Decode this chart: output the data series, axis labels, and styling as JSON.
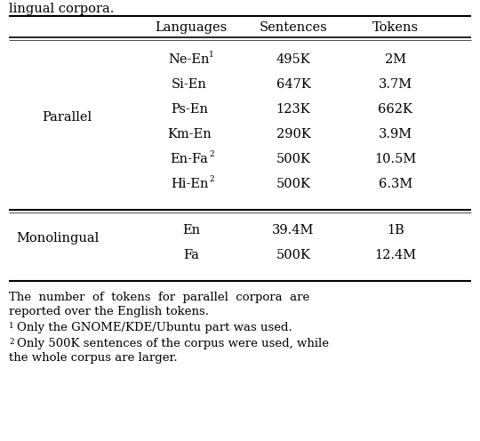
{
  "title_top": "lingual corpora.",
  "col_headers": [
    "Languages",
    "Sentences",
    "Tokens"
  ],
  "row_group1_label": "Parallel",
  "row_group1_data": [
    [
      "Ne-En",
      "1",
      "495K",
      "2M"
    ],
    [
      "Si-En",
      "",
      "647K",
      "3.7M"
    ],
    [
      "Ps-En",
      "",
      "123K",
      "662K"
    ],
    [
      "Km-En",
      "",
      "290K",
      "3.9M"
    ],
    [
      "En-Fa",
      "2",
      "500K",
      "10.5M"
    ],
    [
      "Hi-En",
      "2",
      "500K",
      "6.3M"
    ]
  ],
  "row_group2_label": "Monolingual",
  "row_group2_data": [
    [
      "En",
      "",
      "39.4M",
      "1B"
    ],
    [
      "Fa",
      "",
      "500K",
      "12.4M"
    ]
  ],
  "footnote_main_line1": "The  number  of  tokens  for  parallel  corpora  are",
  "footnote_main_line2": "reported over the English tokens.",
  "footnote1_super": "1",
  "footnote1_text": "Only the GNOME/KDE/Ubuntu part was used.",
  "footnote2_super": "2",
  "footnote2_line1": "Only 500K sentences of the corpus were used, while",
  "footnote2_line2": "the whole corpus are larger.",
  "bg_color": "#ffffff",
  "text_color": "#000000",
  "line_color": "#000000"
}
